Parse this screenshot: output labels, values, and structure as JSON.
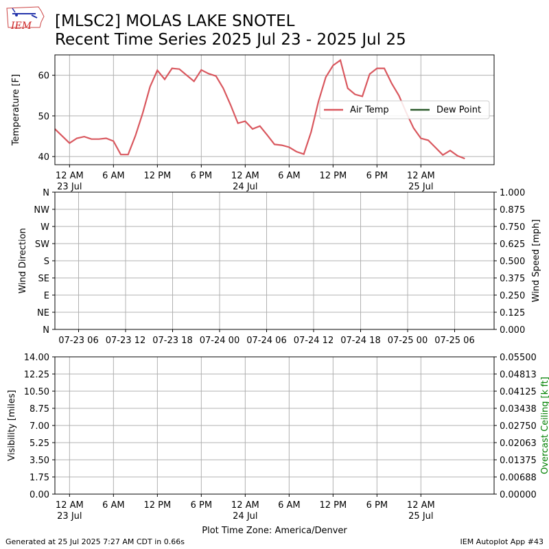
{
  "header": {
    "title_line1": "[MLSC2] MOLAS LAKE SNOTEL",
    "title_line2": "Recent Time Series 2025 Jul 23 - 2025 Jul 25",
    "logo_text": "IEM"
  },
  "footer": {
    "left": "Generated at 25 Jul 2025 7:27 AM CDT in 0.66s",
    "right": "IEM Autoplot App #43"
  },
  "colors": {
    "air_temp": "#d9575e",
    "dew_point": "#2b5a2b",
    "grid": "#b0b0b0",
    "ceiling_label": "#008000"
  },
  "chart_data": [
    {
      "type": "line",
      "ylabel": "Temperature [F]",
      "ylim": [
        38,
        65
      ],
      "yticks": [
        40,
        50,
        60
      ],
      "xlim": [
        "2025-07-22T22:00",
        "2025-07-25T10:00"
      ],
      "xticks": [
        {
          "time": "2025-07-23T00:00",
          "label": "12 AM",
          "sublabel": "23 Jul"
        },
        {
          "time": "2025-07-23T06:00",
          "label": "6 AM",
          "sublabel": ""
        },
        {
          "time": "2025-07-23T12:00",
          "label": "12 PM",
          "sublabel": ""
        },
        {
          "time": "2025-07-23T18:00",
          "label": "6 PM",
          "sublabel": ""
        },
        {
          "time": "2025-07-24T00:00",
          "label": "12 AM",
          "sublabel": "24 Jul"
        },
        {
          "time": "2025-07-24T06:00",
          "label": "6 AM",
          "sublabel": ""
        },
        {
          "time": "2025-07-24T12:00",
          "label": "12 PM",
          "sublabel": ""
        },
        {
          "time": "2025-07-24T18:00",
          "label": "6 PM",
          "sublabel": ""
        },
        {
          "time": "2025-07-25T00:00",
          "label": "12 AM",
          "sublabel": "25 Jul"
        }
      ],
      "grid": true,
      "legend_location": "center-right",
      "series": [
        {
          "name": "Air Temp",
          "color": "#d9575e",
          "points": [
            [
              "2025-07-22T22:00",
              46.8
            ],
            [
              "2025-07-23T00:00",
              43.3
            ],
            [
              "2025-07-23T01:00",
              44.5
            ],
            [
              "2025-07-23T02:00",
              44.9
            ],
            [
              "2025-07-23T03:00",
              44.3
            ],
            [
              "2025-07-23T04:00",
              44.3
            ],
            [
              "2025-07-23T05:00",
              44.5
            ],
            [
              "2025-07-23T06:00",
              43.8
            ],
            [
              "2025-07-23T07:00",
              40.5
            ],
            [
              "2025-07-23T08:00",
              40.5
            ],
            [
              "2025-07-23T09:00",
              45.1
            ],
            [
              "2025-07-23T10:00",
              50.7
            ],
            [
              "2025-07-23T11:00",
              57.2
            ],
            [
              "2025-07-23T12:00",
              61.2
            ],
            [
              "2025-07-23T13:00",
              59.0
            ],
            [
              "2025-07-23T14:00",
              61.7
            ],
            [
              "2025-07-23T15:00",
              61.5
            ],
            [
              "2025-07-23T16:00",
              60.0
            ],
            [
              "2025-07-23T17:00",
              58.5
            ],
            [
              "2025-07-23T18:00",
              61.3
            ],
            [
              "2025-07-23T19:00",
              60.4
            ],
            [
              "2025-07-23T20:00",
              59.8
            ],
            [
              "2025-07-23T21:00",
              56.8
            ],
            [
              "2025-07-23T22:00",
              52.7
            ],
            [
              "2025-07-23T23:00",
              48.2
            ],
            [
              "2025-07-24T00:00",
              48.7
            ],
            [
              "2025-07-24T01:00",
              46.8
            ],
            [
              "2025-07-24T02:00",
              47.5
            ],
            [
              "2025-07-24T03:00",
              45.3
            ],
            [
              "2025-07-24T04:00",
              43.0
            ],
            [
              "2025-07-24T05:00",
              42.8
            ],
            [
              "2025-07-24T06:00",
              42.3
            ],
            [
              "2025-07-24T07:00",
              41.2
            ],
            [
              "2025-07-24T08:00",
              40.6
            ],
            [
              "2025-07-24T09:00",
              46.0
            ],
            [
              "2025-07-24T10:00",
              53.5
            ],
            [
              "2025-07-24T11:00",
              59.5
            ],
            [
              "2025-07-24T12:00",
              62.4
            ],
            [
              "2025-07-24T13:00",
              63.7
            ],
            [
              "2025-07-24T14:00",
              56.8
            ],
            [
              "2025-07-24T15:00",
              55.3
            ],
            [
              "2025-07-24T16:00",
              54.8
            ],
            [
              "2025-07-24T17:00",
              60.3
            ],
            [
              "2025-07-24T18:00",
              61.7
            ],
            [
              "2025-07-24T19:00",
              61.7
            ],
            [
              "2025-07-24T20:00",
              58.0
            ],
            [
              "2025-07-24T21:00",
              55.0
            ],
            [
              "2025-07-24T22:00",
              50.8
            ],
            [
              "2025-07-24T23:00",
              47.0
            ],
            [
              "2025-07-25T00:00",
              44.5
            ],
            [
              "2025-07-25T01:00",
              44.0
            ],
            [
              "2025-07-25T02:00",
              42.2
            ],
            [
              "2025-07-25T03:00",
              40.4
            ],
            [
              "2025-07-25T04:00",
              41.5
            ],
            [
              "2025-07-25T05:00",
              40.2
            ],
            [
              "2025-07-25T06:00",
              39.5
            ]
          ]
        },
        {
          "name": "Dew Point",
          "color": "#2b5a2b",
          "points": []
        }
      ]
    },
    {
      "type": "scatter",
      "ylabel": "Wind Direction",
      "ylabel_right": "Wind Speed [mph]",
      "yticks_left": [
        "N",
        "NE",
        "E",
        "SE",
        "S",
        "SW",
        "W",
        "NW",
        "N"
      ],
      "yticks_right": [
        "0.000",
        "0.125",
        "0.250",
        "0.375",
        "0.500",
        "0.625",
        "0.750",
        "0.875",
        "1.000"
      ],
      "ylim_right": [
        0,
        1
      ],
      "xtick_labels": [
        "07-23 06",
        "07-23 12",
        "07-23 18",
        "07-24 00",
        "07-24 06",
        "07-24 12",
        "07-24 18",
        "07-25 00",
        "07-25 06"
      ],
      "grid": true,
      "series": []
    },
    {
      "type": "line",
      "ylabel": "Visibility [miles]",
      "ylabel_right": "Overcast Ceiling [k ft]",
      "yticks_left": [
        "0.00",
        "1.75",
        "3.50",
        "5.25",
        "7.00",
        "8.75",
        "10.50",
        "12.25",
        "14.00"
      ],
      "yticks_right": [
        "0.00000",
        "0.00688",
        "0.01375",
        "0.02063",
        "0.02750",
        "0.03438",
        "0.04125",
        "0.04813",
        "0.05500"
      ],
      "ylim": [
        0,
        14
      ],
      "ylim_right": [
        0,
        0.055
      ],
      "xlabel": "Plot Time Zone: America/Denver",
      "grid": true,
      "series": []
    }
  ]
}
